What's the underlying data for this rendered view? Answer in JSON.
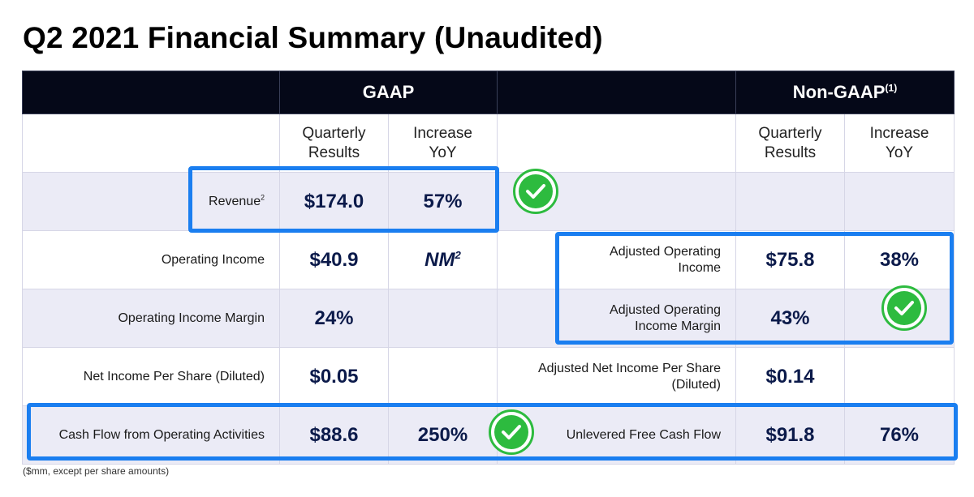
{
  "title": "Q2 2021 Financial Summary (Unaudited)",
  "header": {
    "gaap": "GAAP",
    "non_gaap": "Non-GAAP",
    "non_gaap_sup": "(1)"
  },
  "subheader": {
    "gaap_results_1": "Quarterly",
    "gaap_results_2": "Results",
    "gaap_yoy_1": "Increase",
    "gaap_yoy_2": "YoY",
    "ng_results_1": "Quarterly",
    "ng_results_2": "Results",
    "ng_yoy_1": "Increase",
    "ng_yoy_2": "YoY"
  },
  "rows": [
    {
      "gaap_label": "Revenue",
      "gaap_label_sup": "2",
      "gaap_value": "$174.0",
      "gaap_yoy": "57%",
      "ng_label_1": "",
      "ng_label_2": "",
      "ng_value": "",
      "ng_yoy": ""
    },
    {
      "gaap_label": "Operating Income",
      "gaap_value": "$40.9",
      "gaap_yoy": "NM",
      "gaap_yoy_sup": "2",
      "ng_label_1": "Adjusted Operating",
      "ng_label_2": "Income",
      "ng_value": "$75.8",
      "ng_yoy": "38%"
    },
    {
      "gaap_label": "Operating Income Margin",
      "gaap_value": "24%",
      "gaap_yoy": "",
      "ng_label_1": "Adjusted Operating",
      "ng_label_2": "Income Margin",
      "ng_value": "43%",
      "ng_yoy": ""
    },
    {
      "gaap_label": "Net Income Per Share (Diluted)",
      "gaap_value": "$0.05",
      "gaap_yoy": "",
      "ng_label_1": "Adjusted Net Income Per Share",
      "ng_label_2": "(Diluted)",
      "ng_value": "$0.14",
      "ng_yoy": ""
    },
    {
      "gaap_label": "Cash Flow from Operating Activities",
      "gaap_value": "$88.6",
      "gaap_yoy": "250%",
      "ng_label_1": "Unlevered Free Cash Flow",
      "ng_label_2": "",
      "ng_value": "$91.8",
      "ng_yoy": "76%"
    }
  ],
  "footnote": "($mm, except per share amounts)",
  "colors": {
    "highlight": "#1a7ef0",
    "check": "#2dbb3f",
    "header_bg": "#050818",
    "value_text": "#0b1a4a",
    "shade": "#ebebf6"
  },
  "icons": {
    "check": "check-circle-icon"
  }
}
